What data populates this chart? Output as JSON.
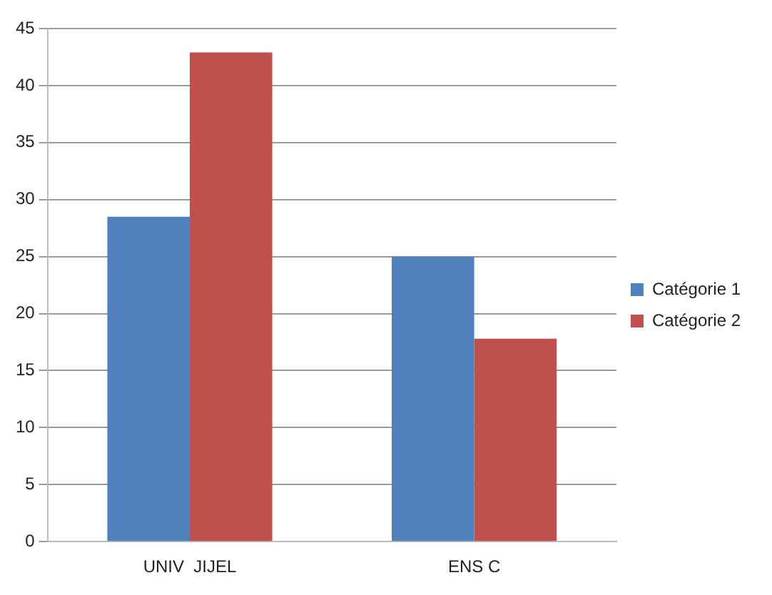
{
  "chart_data": {
    "type": "bar",
    "categories": [
      "UNIV  JIJEL",
      "ENS C"
    ],
    "series": [
      {
        "name": "Catégorie 1",
        "color": "#4f81bd",
        "values": [
          28.5,
          25
        ]
      },
      {
        "name": "Catégorie 2",
        "color": "#c0504d",
        "values": [
          42.9,
          17.8
        ]
      }
    ],
    "ylim": [
      0,
      45
    ],
    "yticks": [
      0,
      5,
      10,
      15,
      20,
      25,
      30,
      35,
      40,
      45
    ],
    "grid": "y",
    "legend": "right"
  }
}
